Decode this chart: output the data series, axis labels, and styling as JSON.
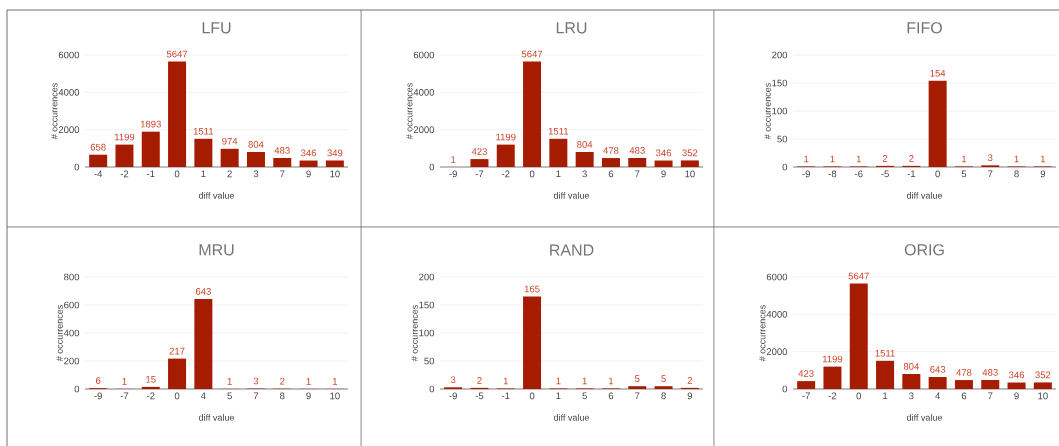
{
  "chart_data": [
    {
      "type": "bar",
      "title": "LFU",
      "xlabel": "diff value",
      "ylabel": "# occurrences",
      "categories": [
        "-4",
        "-2",
        "-1",
        "0",
        "1",
        "2",
        "3",
        "7",
        "9",
        "10"
      ],
      "values": [
        658,
        1199,
        1893,
        5647,
        1511,
        974,
        804,
        483,
        346,
        349
      ],
      "color": "#a61c00",
      "ylim": [
        0,
        6000
      ],
      "yticks": [
        0,
        2000,
        4000,
        6000
      ],
      "grid": "y",
      "data_labels": true
    },
    {
      "type": "bar",
      "title": "LRU",
      "xlabel": "diff value",
      "ylabel": "# occurrences",
      "categories": [
        "-9",
        "-7",
        "-2",
        "0",
        "1",
        "3",
        "6",
        "7",
        "9",
        "10"
      ],
      "values": [
        1,
        423,
        1199,
        5647,
        1511,
        804,
        478,
        483,
        346,
        352
      ],
      "color": "#a61c00",
      "ylim": [
        0,
        6000
      ],
      "yticks": [
        0,
        2000,
        4000,
        6000
      ],
      "grid": "y",
      "data_labels": true
    },
    {
      "type": "bar",
      "title": "FIFO",
      "xlabel": "diff value",
      "ylabel": "# occurrences",
      "categories": [
        "-9",
        "-8",
        "-6",
        "-5",
        "-1",
        "0",
        "5",
        "7",
        "8",
        "9"
      ],
      "values": [
        1,
        1,
        1,
        2,
        2,
        154,
        1,
        3,
        1,
        1
      ],
      "color": "#a61c00",
      "ylim": [
        0,
        200
      ],
      "yticks": [
        0,
        50,
        100,
        150,
        200
      ],
      "grid": "y",
      "data_labels": true
    },
    {
      "type": "bar",
      "title": "MRU",
      "xlabel": "diff value",
      "ylabel": "# occurrences",
      "categories": [
        "-9",
        "-7",
        "-2",
        "0",
        "4",
        "5",
        "7",
        "8",
        "9",
        "10"
      ],
      "values": [
        6,
        1,
        15,
        217,
        643,
        1,
        3,
        2,
        1,
        1
      ],
      "color": "#a61c00",
      "ylim": [
        0,
        800
      ],
      "yticks": [
        0,
        200,
        400,
        600,
        800
      ],
      "grid": "y",
      "data_labels": true
    },
    {
      "type": "bar",
      "title": "RAND",
      "xlabel": "diff value",
      "ylabel": "# occurrences",
      "categories": [
        "-9",
        "-5",
        "-1",
        "0",
        "1",
        "5",
        "6",
        "7",
        "8",
        "9"
      ],
      "values": [
        3,
        2,
        1,
        165,
        1,
        1,
        1,
        5,
        5,
        2
      ],
      "color": "#a61c00",
      "ylim": [
        0,
        200
      ],
      "yticks": [
        0,
        50,
        100,
        150,
        200
      ],
      "grid": "y",
      "data_labels": true
    },
    {
      "type": "bar",
      "title": "ORIG",
      "xlabel": "diff value",
      "ylabel": "# occurrences",
      "categories": [
        "-7",
        "-2",
        "0",
        "1",
        "3",
        "4",
        "6",
        "7",
        "9",
        "10"
      ],
      "values": [
        423,
        1199,
        5647,
        1511,
        804,
        643,
        478,
        483,
        346,
        352
      ],
      "color": "#a61c00",
      "ylim": [
        0,
        6000
      ],
      "yticks": [
        0,
        2000,
        4000,
        6000
      ],
      "grid": "y",
      "data_labels": true
    }
  ]
}
